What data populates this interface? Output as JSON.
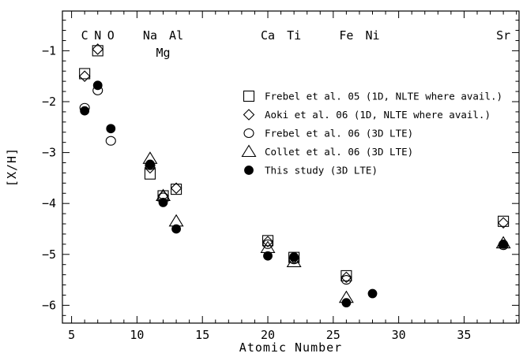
{
  "chart_data": {
    "type": "scatter",
    "xlabel": "Atomic Number",
    "ylabel": "[X/H]",
    "xlim": [
      4.3,
      39.2
    ],
    "ylim": [
      -6.35,
      -0.22
    ],
    "xticks": [
      5,
      10,
      15,
      20,
      25,
      30,
      35
    ],
    "yticks": [
      -1,
      -2,
      -3,
      -4,
      -5,
      -6
    ],
    "xtick_labels": [
      "5",
      "10",
      "15",
      "20",
      "25",
      "30",
      "35"
    ],
    "ytick_labels": [
      "−1",
      "−2",
      "−3",
      "−4",
      "−5",
      "−6"
    ],
    "grid": false,
    "legend_position": "right",
    "element_labels": [
      {
        "text": "C",
        "x": 6,
        "row": "top"
      },
      {
        "text": "N",
        "x": 7,
        "row": "top"
      },
      {
        "text": "O",
        "x": 8,
        "row": "top"
      },
      {
        "text": "Na",
        "x": 11,
        "row": "top"
      },
      {
        "text": "Al",
        "x": 13,
        "row": "top"
      },
      {
        "text": "Mg",
        "x": 12,
        "row": "bottom"
      },
      {
        "text": "Ca",
        "x": 20,
        "row": "top"
      },
      {
        "text": "Ti",
        "x": 22,
        "row": "top"
      },
      {
        "text": "Fe",
        "x": 26,
        "row": "top"
      },
      {
        "text": "Ni",
        "x": 28,
        "row": "top"
      },
      {
        "text": "Sr",
        "x": 38,
        "row": "top"
      }
    ],
    "series": [
      {
        "name": "Frebel et al. 05 (1D, NLTE where avail.)",
        "marker": "square",
        "points": [
          [
            6,
            -1.45
          ],
          [
            7,
            -1.0
          ],
          [
            11,
            -3.42
          ],
          [
            12,
            -3.85
          ],
          [
            13,
            -3.72
          ],
          [
            20,
            -4.73
          ],
          [
            22,
            -5.06
          ],
          [
            26,
            -5.42
          ],
          [
            38,
            -4.35
          ]
        ]
      },
      {
        "name": "Aoki et al. 06 (1D, NLTE where avail.)",
        "marker": "diamond",
        "points": [
          [
            6,
            -1.5
          ],
          [
            7,
            -0.97
          ],
          [
            11,
            -3.3
          ],
          [
            12,
            -3.85
          ],
          [
            13,
            -3.7
          ],
          [
            20,
            -4.75
          ],
          [
            22,
            -5.07
          ],
          [
            26,
            -5.45
          ],
          [
            38,
            -4.38
          ]
        ]
      },
      {
        "name": "Frebel et al. 06 (3D LTE)",
        "marker": "circle",
        "points": [
          [
            6,
            -2.12
          ],
          [
            7,
            -1.78
          ],
          [
            8,
            -2.77
          ],
          [
            11,
            -3.25
          ],
          [
            12,
            -3.88
          ],
          [
            20,
            -4.8
          ],
          [
            22,
            -5.1
          ],
          [
            26,
            -5.5
          ],
          [
            38,
            -4.82
          ]
        ]
      },
      {
        "name": "Collet et al. 06 (3D LTE)",
        "marker": "triangle",
        "points": [
          [
            11,
            -3.12
          ],
          [
            12,
            -3.85
          ],
          [
            13,
            -4.35
          ],
          [
            20,
            -4.87
          ],
          [
            22,
            -5.15
          ],
          [
            26,
            -5.85
          ],
          [
            38,
            -4.78
          ]
        ]
      },
      {
        "name": "This study (3D LTE)",
        "marker": "filled-circle",
        "points": [
          [
            6,
            -2.18
          ],
          [
            7,
            -1.68
          ],
          [
            8,
            -2.53
          ],
          [
            11,
            -3.23
          ],
          [
            12,
            -3.98
          ],
          [
            13,
            -4.5
          ],
          [
            20,
            -5.03
          ],
          [
            22,
            -5.05
          ],
          [
            26,
            -5.95
          ],
          [
            28,
            -5.77
          ],
          [
            38,
            -4.8
          ]
        ]
      }
    ]
  }
}
